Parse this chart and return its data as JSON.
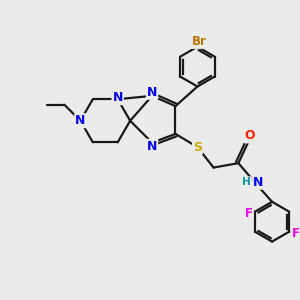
{
  "background_color": "#ebebeb",
  "bond_color": "#1a1a1a",
  "atom_colors": {
    "N": "#0000ee",
    "S": "#ccaa00",
    "O": "#ff2200",
    "F": "#ee00ee",
    "Br": "#bb7700",
    "H": "#009999",
    "C": "#1a1a1a"
  },
  "lw": 1.6
}
